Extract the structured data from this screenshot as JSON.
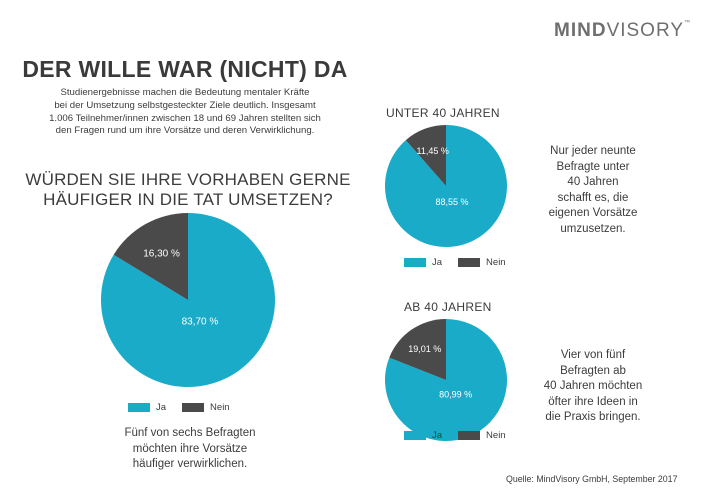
{
  "logo": {
    "bold": "MIND",
    "light": "VISORY",
    "mark": "™"
  },
  "title": "DER WILLE WAR (NICHT) DA",
  "intro": [
    "Studienergebnisse machen die Bedeutung mentaler Kräfte",
    "bei der Umsetzung selbstgesteckter Ziele deutlich. Insgesamt",
    "1.006 Teilnehmer/innen zwischen 18 und 69 Jahren stellten sich",
    "den Fragen rund um ihre Vorsätze und deren Verwirklichung."
  ],
  "question": [
    "WÜRDEN SIE IHRE VORHABEN GERNE",
    "HÄUFIGER IN DIE TAT UMSETZEN?"
  ],
  "colors": {
    "ja": "#1aabc9",
    "nein": "#4a4a4a"
  },
  "chart_data": [
    {
      "type": "pie",
      "title": "",
      "categories": [
        "Ja",
        "Nein"
      ],
      "values": [
        83.7,
        16.3
      ],
      "labels": [
        "83,70 %",
        "16,30 %"
      ],
      "colors": [
        "#1aabc9",
        "#4a4a4a"
      ],
      "legend": "bottom"
    },
    {
      "type": "pie",
      "title": "UNTER 40 JAHREN",
      "categories": [
        "Ja",
        "Nein"
      ],
      "values": [
        88.55,
        11.45
      ],
      "labels": [
        "88,55 %",
        "11,45 %"
      ],
      "colors": [
        "#1aabc9",
        "#4a4a4a"
      ],
      "legend": "bottom"
    },
    {
      "type": "pie",
      "title": "AB 40 JAHREN",
      "categories": [
        "Ja",
        "Nein"
      ],
      "values": [
        80.99,
        19.01
      ],
      "labels": [
        "80,99 %",
        "19,01 %"
      ],
      "colors": [
        "#1aabc9",
        "#4a4a4a"
      ],
      "legend": "bottom"
    }
  ],
  "notes": {
    "main": [
      "Fünf von sechs Befragten",
      "möchten ihre Vorsätze",
      "häufiger verwirklichen."
    ],
    "under40": [
      "Nur jeder neunte",
      "Befragte unter",
      "40 Jahren",
      "schafft es, die",
      "eigenen Vorsätze",
      "umzusetzen."
    ],
    "over40": [
      "Vier von fünf",
      "Befragten ab",
      "40 Jahren möchten",
      "öfter ihre Ideen in",
      "die Praxis bringen."
    ]
  },
  "source": "Quelle: MindVisory GmbH, September 2017"
}
